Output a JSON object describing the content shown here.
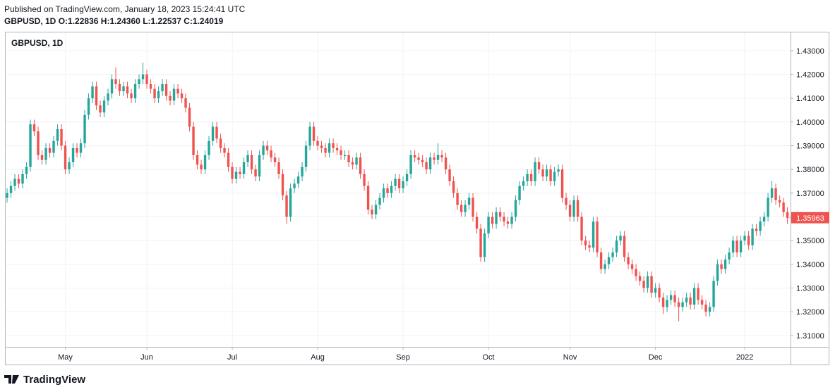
{
  "header": {
    "published": "Published on TradingView.com, January 18, 2023 15:24:41 UTC",
    "symbol": "GBPUSD, 1D",
    "ohlc": [
      {
        "label": "O:",
        "value": "1.22836"
      },
      {
        "label": "H:",
        "value": "1.24360"
      },
      {
        "label": "L:",
        "value": "1.22537"
      },
      {
        "label": "C:",
        "value": "1.24019"
      }
    ]
  },
  "chart_data": {
    "type": "candlestick",
    "title": "GBPUSD, 1D",
    "candles": [
      [
        1.368,
        1.372,
        1.366,
        1.37
      ],
      [
        1.37,
        1.375,
        1.368,
        1.373
      ],
      [
        1.373,
        1.378,
        1.371,
        1.376
      ],
      [
        1.376,
        1.378,
        1.372,
        1.374
      ],
      [
        1.374,
        1.38,
        1.372,
        1.378
      ],
      [
        1.378,
        1.383,
        1.376,
        1.381
      ],
      [
        1.381,
        1.401,
        1.379,
        1.399
      ],
      [
        1.399,
        1.401,
        1.394,
        1.396
      ],
      [
        1.396,
        1.398,
        1.384,
        1.386
      ],
      [
        1.386,
        1.388,
        1.382,
        1.384
      ],
      [
        1.384,
        1.391,
        1.382,
        1.389
      ],
      [
        1.389,
        1.391,
        1.385,
        1.387
      ],
      [
        1.387,
        1.394,
        1.385,
        1.392
      ],
      [
        1.392,
        1.399,
        1.39,
        1.397
      ],
      [
        1.397,
        1.399,
        1.388,
        1.39
      ],
      [
        1.39,
        1.392,
        1.378,
        1.38
      ],
      [
        1.38,
        1.385,
        1.378,
        1.383
      ],
      [
        1.383,
        1.391,
        1.381,
        1.389
      ],
      [
        1.389,
        1.391,
        1.385,
        1.387
      ],
      [
        1.387,
        1.393,
        1.385,
        1.391
      ],
      [
        1.391,
        1.405,
        1.389,
        1.403
      ],
      [
        1.403,
        1.412,
        1.401,
        1.41
      ],
      [
        1.41,
        1.417,
        1.408,
        1.415
      ],
      [
        1.415,
        1.417,
        1.405,
        1.407
      ],
      [
        1.407,
        1.409,
        1.402,
        1.404
      ],
      [
        1.404,
        1.411,
        1.402,
        1.409
      ],
      [
        1.409,
        1.414,
        1.407,
        1.412
      ],
      [
        1.412,
        1.42,
        1.41,
        1.418
      ],
      [
        1.418,
        1.423,
        1.414,
        1.416
      ],
      [
        1.416,
        1.418,
        1.411,
        1.413
      ],
      [
        1.413,
        1.417,
        1.411,
        1.415
      ],
      [
        1.415,
        1.417,
        1.41,
        1.412
      ],
      [
        1.412,
        1.414,
        1.408,
        1.41
      ],
      [
        1.41,
        1.418,
        1.408,
        1.416
      ],
      [
        1.416,
        1.42,
        1.414,
        1.418
      ],
      [
        1.418,
        1.425,
        1.416,
        1.42
      ],
      [
        1.42,
        1.422,
        1.414,
        1.416
      ],
      [
        1.416,
        1.418,
        1.412,
        1.414
      ],
      [
        1.414,
        1.416,
        1.408,
        1.41
      ],
      [
        1.41,
        1.415,
        1.408,
        1.413
      ],
      [
        1.413,
        1.418,
        1.411,
        1.416
      ],
      [
        1.416,
        1.418,
        1.409,
        1.411
      ],
      [
        1.411,
        1.413,
        1.407,
        1.409
      ],
      [
        1.409,
        1.416,
        1.407,
        1.414
      ],
      [
        1.414,
        1.416,
        1.41,
        1.412
      ],
      [
        1.412,
        1.414,
        1.408,
        1.41
      ],
      [
        1.41,
        1.412,
        1.404,
        1.406
      ],
      [
        1.406,
        1.408,
        1.396,
        1.398
      ],
      [
        1.398,
        1.4,
        1.384,
        1.386
      ],
      [
        1.386,
        1.388,
        1.38,
        1.382
      ],
      [
        1.382,
        1.384,
        1.378,
        1.38
      ],
      [
        1.38,
        1.388,
        1.378,
        1.386
      ],
      [
        1.386,
        1.394,
        1.384,
        1.392
      ],
      [
        1.392,
        1.4,
        1.39,
        1.398
      ],
      [
        1.398,
        1.4,
        1.391,
        1.393
      ],
      [
        1.393,
        1.395,
        1.387,
        1.389
      ],
      [
        1.389,
        1.391,
        1.385,
        1.387
      ],
      [
        1.387,
        1.389,
        1.379,
        1.381
      ],
      [
        1.381,
        1.383,
        1.374,
        1.376
      ],
      [
        1.376,
        1.381,
        1.374,
        1.379
      ],
      [
        1.379,
        1.381,
        1.376,
        1.378
      ],
      [
        1.378,
        1.385,
        1.376,
        1.383
      ],
      [
        1.383,
        1.388,
        1.381,
        1.386
      ],
      [
        1.386,
        1.388,
        1.378,
        1.38
      ],
      [
        1.38,
        1.382,
        1.375,
        1.377
      ],
      [
        1.377,
        1.388,
        1.375,
        1.386
      ],
      [
        1.386,
        1.392,
        1.384,
        1.39
      ],
      [
        1.39,
        1.392,
        1.386,
        1.388
      ],
      [
        1.388,
        1.39,
        1.383,
        1.385
      ],
      [
        1.385,
        1.387,
        1.381,
        1.383
      ],
      [
        1.383,
        1.385,
        1.376,
        1.378
      ],
      [
        1.378,
        1.38,
        1.367,
        1.369
      ],
      [
        1.369,
        1.371,
        1.357,
        1.36
      ],
      [
        1.36,
        1.374,
        1.358,
        1.372
      ],
      [
        1.372,
        1.376,
        1.37,
        1.374
      ],
      [
        1.374,
        1.379,
        1.372,
        1.377
      ],
      [
        1.377,
        1.383,
        1.375,
        1.381
      ],
      [
        1.381,
        1.392,
        1.379,
        1.39
      ],
      [
        1.39,
        1.4,
        1.388,
        1.398
      ],
      [
        1.398,
        1.4,
        1.39,
        1.392
      ],
      [
        1.392,
        1.394,
        1.388,
        1.39
      ],
      [
        1.39,
        1.392,
        1.387,
        1.389
      ],
      [
        1.389,
        1.391,
        1.385,
        1.387
      ],
      [
        1.387,
        1.393,
        1.385,
        1.391
      ],
      [
        1.391,
        1.393,
        1.387,
        1.389
      ],
      [
        1.389,
        1.391,
        1.386,
        1.388
      ],
      [
        1.388,
        1.39,
        1.384,
        1.386
      ],
      [
        1.386,
        1.388,
        1.384,
        1.386
      ],
      [
        1.386,
        1.388,
        1.381,
        1.383
      ],
      [
        1.383,
        1.385,
        1.38,
        1.382
      ],
      [
        1.382,
        1.387,
        1.38,
        1.385
      ],
      [
        1.385,
        1.387,
        1.376,
        1.378
      ],
      [
        1.378,
        1.38,
        1.371,
        1.373
      ],
      [
        1.373,
        1.375,
        1.361,
        1.363
      ],
      [
        1.363,
        1.365,
        1.359,
        1.361
      ],
      [
        1.361,
        1.367,
        1.359,
        1.365
      ],
      [
        1.365,
        1.37,
        1.363,
        1.368
      ],
      [
        1.368,
        1.374,
        1.366,
        1.372
      ],
      [
        1.372,
        1.374,
        1.368,
        1.37
      ],
      [
        1.37,
        1.375,
        1.368,
        1.373
      ],
      [
        1.373,
        1.378,
        1.371,
        1.376
      ],
      [
        1.376,
        1.378,
        1.37,
        1.372
      ],
      [
        1.372,
        1.377,
        1.37,
        1.375
      ],
      [
        1.375,
        1.38,
        1.373,
        1.378
      ],
      [
        1.378,
        1.388,
        1.376,
        1.386
      ],
      [
        1.386,
        1.388,
        1.383,
        1.385
      ],
      [
        1.385,
        1.387,
        1.382,
        1.384
      ],
      [
        1.384,
        1.386,
        1.381,
        1.383
      ],
      [
        1.383,
        1.385,
        1.378,
        1.38
      ],
      [
        1.38,
        1.387,
        1.378,
        1.385
      ],
      [
        1.385,
        1.387,
        1.382,
        1.384
      ],
      [
        1.384,
        1.391,
        1.382,
        1.386
      ],
      [
        1.386,
        1.388,
        1.383,
        1.385
      ],
      [
        1.385,
        1.387,
        1.378,
        1.38
      ],
      [
        1.38,
        1.382,
        1.373,
        1.375
      ],
      [
        1.375,
        1.377,
        1.368,
        1.37
      ],
      [
        1.37,
        1.372,
        1.363,
        1.365
      ],
      [
        1.365,
        1.367,
        1.36,
        1.362
      ],
      [
        1.362,
        1.367,
        1.36,
        1.365
      ],
      [
        1.365,
        1.37,
        1.363,
        1.368
      ],
      [
        1.368,
        1.37,
        1.358,
        1.36
      ],
      [
        1.36,
        1.362,
        1.353,
        1.355
      ],
      [
        1.355,
        1.357,
        1.341,
        1.343
      ],
      [
        1.343,
        1.355,
        1.341,
        1.353
      ],
      [
        1.353,
        1.362,
        1.351,
        1.36
      ],
      [
        1.36,
        1.362,
        1.355,
        1.357
      ],
      [
        1.357,
        1.364,
        1.355,
        1.362
      ],
      [
        1.362,
        1.364,
        1.358,
        1.36
      ],
      [
        1.36,
        1.362,
        1.356,
        1.358
      ],
      [
        1.358,
        1.36,
        1.355,
        1.357
      ],
      [
        1.357,
        1.362,
        1.355,
        1.36
      ],
      [
        1.36,
        1.369,
        1.358,
        1.367
      ],
      [
        1.367,
        1.375,
        1.365,
        1.373
      ],
      [
        1.373,
        1.377,
        1.371,
        1.375
      ],
      [
        1.375,
        1.38,
        1.373,
        1.378
      ],
      [
        1.378,
        1.38,
        1.373,
        1.375
      ],
      [
        1.375,
        1.385,
        1.373,
        1.383
      ],
      [
        1.383,
        1.385,
        1.378,
        1.38
      ],
      [
        1.38,
        1.382,
        1.375,
        1.377
      ],
      [
        1.377,
        1.382,
        1.375,
        1.38
      ],
      [
        1.38,
        1.382,
        1.373,
        1.375
      ],
      [
        1.375,
        1.381,
        1.373,
        1.379
      ],
      [
        1.379,
        1.382,
        1.377,
        1.38
      ],
      [
        1.38,
        1.382,
        1.366,
        1.368
      ],
      [
        1.368,
        1.37,
        1.363,
        1.365
      ],
      [
        1.365,
        1.367,
        1.358,
        1.36
      ],
      [
        1.36,
        1.369,
        1.358,
        1.367
      ],
      [
        1.367,
        1.369,
        1.358,
        1.36
      ],
      [
        1.36,
        1.362,
        1.348,
        1.35
      ],
      [
        1.35,
        1.352,
        1.346,
        1.348
      ],
      [
        1.348,
        1.35,
        1.345,
        1.347
      ],
      [
        1.347,
        1.36,
        1.345,
        1.358
      ],
      [
        1.358,
        1.36,
        1.343,
        1.345
      ],
      [
        1.345,
        1.347,
        1.336,
        1.338
      ],
      [
        1.338,
        1.342,
        1.336,
        1.34
      ],
      [
        1.34,
        1.345,
        1.338,
        1.343
      ],
      [
        1.343,
        1.347,
        1.341,
        1.345
      ],
      [
        1.345,
        1.352,
        1.343,
        1.35
      ],
      [
        1.35,
        1.354,
        1.348,
        1.352
      ],
      [
        1.352,
        1.354,
        1.341,
        1.343
      ],
      [
        1.343,
        1.345,
        1.338,
        1.34
      ],
      [
        1.34,
        1.342,
        1.336,
        1.338
      ],
      [
        1.338,
        1.34,
        1.333,
        1.335
      ],
      [
        1.335,
        1.337,
        1.331,
        1.333
      ],
      [
        1.333,
        1.335,
        1.328,
        1.33
      ],
      [
        1.33,
        1.337,
        1.328,
        1.335
      ],
      [
        1.335,
        1.337,
        1.326,
        1.328
      ],
      [
        1.328,
        1.332,
        1.326,
        1.33
      ],
      [
        1.33,
        1.332,
        1.324,
        1.326
      ],
      [
        1.326,
        1.328,
        1.319,
        1.322
      ],
      [
        1.322,
        1.327,
        1.32,
        1.325
      ],
      [
        1.325,
        1.329,
        1.323,
        1.327
      ],
      [
        1.327,
        1.329,
        1.322,
        1.324
      ],
      [
        1.324,
        1.326,
        1.316,
        1.322
      ],
      [
        1.322,
        1.326,
        1.32,
        1.324
      ],
      [
        1.324,
        1.328,
        1.322,
        1.326
      ],
      [
        1.326,
        1.328,
        1.321,
        1.323
      ],
      [
        1.323,
        1.332,
        1.321,
        1.33
      ],
      [
        1.33,
        1.332,
        1.323,
        1.325
      ],
      [
        1.325,
        1.327,
        1.321,
        1.323
      ],
      [
        1.323,
        1.325,
        1.318,
        1.32
      ],
      [
        1.32,
        1.324,
        1.318,
        1.322
      ],
      [
        1.322,
        1.335,
        1.32,
        1.333
      ],
      [
        1.333,
        1.342,
        1.331,
        1.34
      ],
      [
        1.34,
        1.342,
        1.336,
        1.338
      ],
      [
        1.338,
        1.344,
        1.336,
        1.342
      ],
      [
        1.342,
        1.347,
        1.34,
        1.345
      ],
      [
        1.345,
        1.352,
        1.343,
        1.35
      ],
      [
        1.35,
        1.352,
        1.343,
        1.345
      ],
      [
        1.345,
        1.352,
        1.343,
        1.35
      ],
      [
        1.35,
        1.354,
        1.348,
        1.352
      ],
      [
        1.352,
        1.354,
        1.346,
        1.348
      ],
      [
        1.348,
        1.357,
        1.346,
        1.355
      ],
      [
        1.355,
        1.357,
        1.352,
        1.354
      ],
      [
        1.354,
        1.36,
        1.352,
        1.358
      ],
      [
        1.358,
        1.362,
        1.356,
        1.36
      ],
      [
        1.36,
        1.37,
        1.358,
        1.368
      ],
      [
        1.368,
        1.375,
        1.366,
        1.372
      ],
      [
        1.372,
        1.374,
        1.365,
        1.367
      ],
      [
        1.367,
        1.369,
        1.364,
        1.366
      ],
      [
        1.366,
        1.368,
        1.36,
        1.362
      ],
      [
        1.362,
        1.364,
        1.357,
        1.35963
      ]
    ],
    "xlim": [
      -0.55,
      201.8
    ],
    "xticks": [
      {
        "value": 15,
        "label": "May"
      },
      {
        "value": 36,
        "label": "Jun"
      },
      {
        "value": 58,
        "label": "Jul"
      },
      {
        "value": 80,
        "label": "Aug"
      },
      {
        "value": 102,
        "label": "Sep"
      },
      {
        "value": 124,
        "label": "Oct"
      },
      {
        "value": 145,
        "label": "Nov"
      },
      {
        "value": 167,
        "label": "Dec"
      },
      {
        "value": 190,
        "label": "2022"
      }
    ],
    "ylim": [
      1.3052,
      1.438
    ],
    "yticks": [
      {
        "value": 1.31,
        "label": "1.31000"
      },
      {
        "value": 1.32,
        "label": "1.32000"
      },
      {
        "value": 1.33,
        "label": "1.33000"
      },
      {
        "value": 1.34,
        "label": "1.34000"
      },
      {
        "value": 1.35,
        "label": "1.35000"
      },
      {
        "value": 1.36,
        "label": "1.36000"
      },
      {
        "value": 1.37,
        "label": "1.37000"
      },
      {
        "value": 1.38,
        "label": "1.38000"
      },
      {
        "value": 1.39,
        "label": "1.39000"
      },
      {
        "value": 1.4,
        "label": "1.40000"
      },
      {
        "value": 1.41,
        "label": "1.41000"
      },
      {
        "value": 1.42,
        "label": "1.42000"
      },
      {
        "value": 1.43,
        "label": "1.43000"
      }
    ],
    "grid": true,
    "up_color": "#26a69a",
    "down_color": "#ef5350"
  },
  "footer": {
    "brand": "TradingView"
  }
}
